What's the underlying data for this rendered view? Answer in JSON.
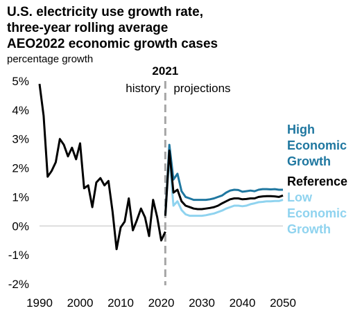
{
  "title_lines": [
    "U.S. electricity use growth rate,",
    "three-year rolling average",
    "AEO2022 economic growth cases"
  ],
  "subtitle": "percentage growth",
  "colors": {
    "high": "#1f77a0",
    "reference": "#000000",
    "low": "#8fd3ef",
    "divider": "#a6a6a6"
  },
  "chart_data": {
    "type": "line",
    "x_ticks": [
      1990,
      2000,
      2010,
      2020,
      2030,
      2040,
      2050
    ],
    "y_ticks": [
      5,
      4,
      3,
      2,
      1,
      0,
      -1,
      -2
    ],
    "y_tick_labels": [
      "5%",
      "4%",
      "3%",
      "2%",
      "1%",
      "0%",
      "-1%",
      "-2%"
    ],
    "xlim": [
      1990,
      2050
    ],
    "ylim": [
      -2,
      5
    ],
    "divider_year": 2021,
    "divider_label": "2021",
    "history_label": "history",
    "projections_label": "projections",
    "legend": {
      "high": [
        "High",
        "Economic",
        "Growth"
      ],
      "reference": [
        "Reference"
      ],
      "low": [
        "Low",
        "Economic",
        "Growth"
      ]
    },
    "history": {
      "x": [
        1990,
        1991,
        1992,
        1993,
        1994,
        1995,
        1996,
        1997,
        1998,
        1999,
        2000,
        2001,
        2002,
        2003,
        2004,
        2005,
        2006,
        2007,
        2008,
        2009,
        2010,
        2011,
        2012,
        2013,
        2014,
        2015,
        2016,
        2017,
        2018,
        2019,
        2020,
        2021
      ],
      "y": [
        4.9,
        3.8,
        1.7,
        1.9,
        2.2,
        3.0,
        2.8,
        2.4,
        2.7,
        2.3,
        2.85,
        1.3,
        1.4,
        0.65,
        1.5,
        1.65,
        1.4,
        1.55,
        0.5,
        -0.8,
        -0.05,
        0.15,
        0.95,
        -0.15,
        0.2,
        0.6,
        0.3,
        -0.35,
        0.9,
        0.3,
        -0.5,
        -0.2
      ]
    },
    "series": [
      {
        "key": "high",
        "x": [
          2021,
          2022,
          2023,
          2024,
          2025,
          2026,
          2027,
          2028,
          2029,
          2030,
          2031,
          2032,
          2033,
          2034,
          2035,
          2036,
          2037,
          2038,
          2039,
          2040,
          2041,
          2042,
          2043,
          2044,
          2045,
          2046,
          2047,
          2048,
          2049,
          2050
        ],
        "y": [
          0.35,
          2.8,
          1.6,
          1.8,
          1.2,
          1.0,
          0.95,
          0.9,
          0.9,
          0.9,
          0.9,
          0.92,
          0.95,
          1.0,
          1.05,
          1.15,
          1.22,
          1.25,
          1.24,
          1.18,
          1.2,
          1.22,
          1.2,
          1.25,
          1.27,
          1.27,
          1.26,
          1.27,
          1.25,
          1.25
        ]
      },
      {
        "key": "reference",
        "x": [
          2021,
          2022,
          2023,
          2024,
          2025,
          2026,
          2027,
          2028,
          2029,
          2030,
          2031,
          2032,
          2033,
          2034,
          2035,
          2036,
          2037,
          2038,
          2039,
          2040,
          2041,
          2042,
          2043,
          2044,
          2045,
          2046,
          2047,
          2048,
          2049,
          2050
        ],
        "y": [
          0.35,
          2.6,
          1.15,
          1.25,
          0.85,
          0.7,
          0.65,
          0.6,
          0.58,
          0.58,
          0.6,
          0.62,
          0.65,
          0.7,
          0.78,
          0.85,
          0.92,
          0.95,
          0.95,
          0.92,
          0.93,
          0.95,
          0.95,
          1.0,
          1.02,
          1.03,
          1.03,
          1.02,
          1.0,
          1.05
        ]
      },
      {
        "key": "low",
        "x": [
          2021,
          2022,
          2023,
          2024,
          2025,
          2026,
          2027,
          2028,
          2029,
          2030,
          2031,
          2032,
          2033,
          2034,
          2035,
          2036,
          2037,
          2038,
          2039,
          2040,
          2041,
          2042,
          2043,
          2044,
          2045,
          2046,
          2047,
          2048,
          2049,
          2050
        ],
        "y": [
          0.35,
          2.4,
          0.7,
          0.85,
          0.55,
          0.4,
          0.35,
          0.35,
          0.35,
          0.35,
          0.37,
          0.4,
          0.43,
          0.48,
          0.53,
          0.6,
          0.65,
          0.7,
          0.7,
          0.68,
          0.7,
          0.75,
          0.78,
          0.82,
          0.83,
          0.85,
          0.85,
          0.86,
          0.86,
          0.9
        ]
      }
    ]
  }
}
